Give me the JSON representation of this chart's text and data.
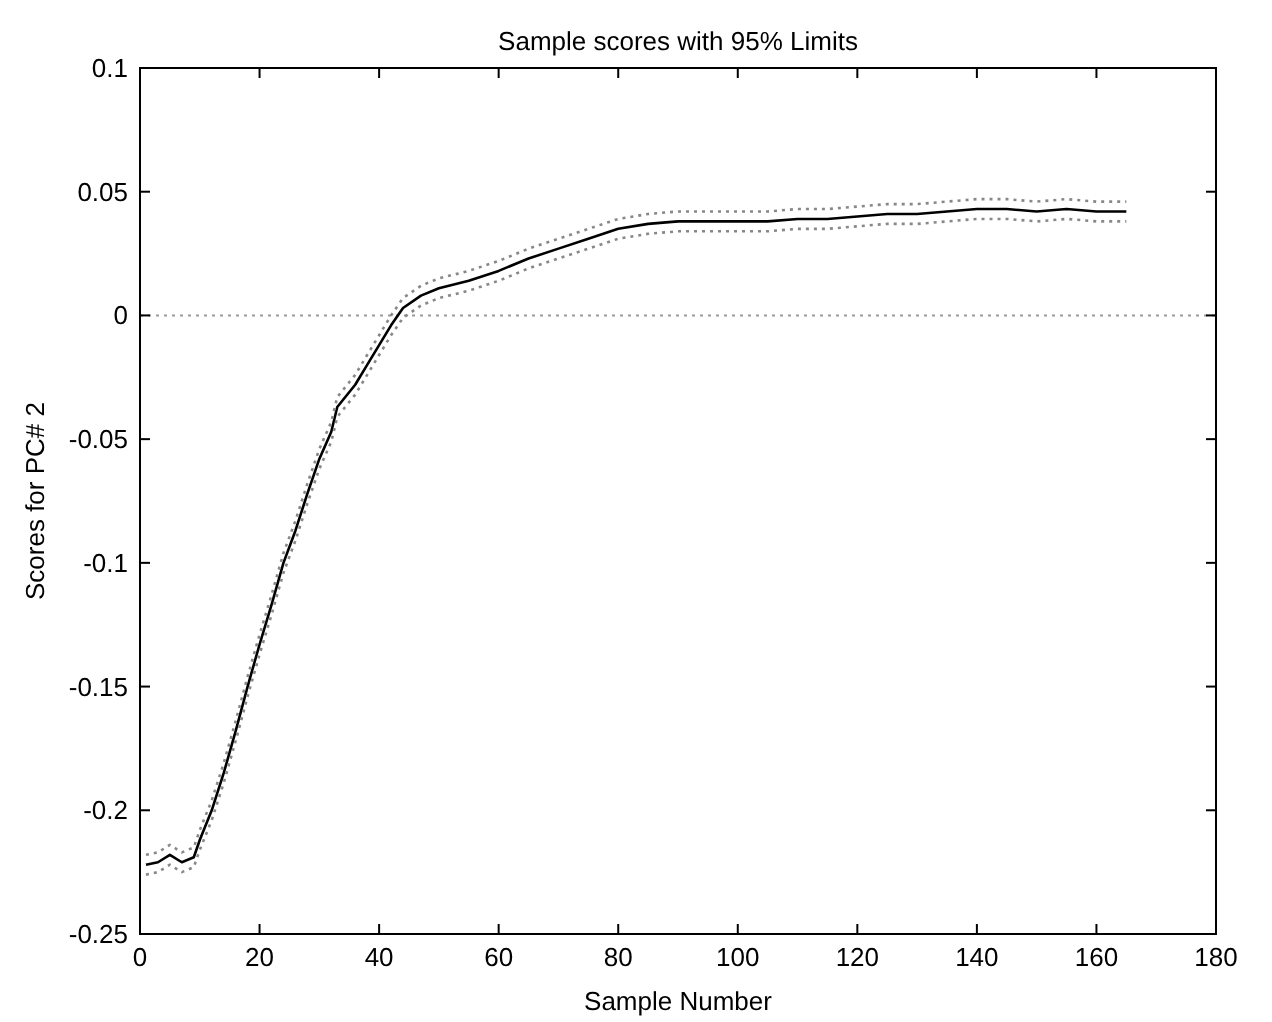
{
  "chart_data": {
    "type": "line",
    "title": "Sample scores with 95% Limits",
    "xlabel": "Sample Number",
    "ylabel": "Scores for PC# 2",
    "x": [
      1,
      3,
      5,
      7,
      9,
      10,
      12,
      14,
      16,
      18,
      20,
      22,
      24,
      26,
      28,
      30,
      32,
      33,
      36,
      38,
      40,
      42,
      44,
      47,
      50,
      55,
      60,
      65,
      70,
      75,
      80,
      85,
      90,
      95,
      100,
      105,
      110,
      115,
      120,
      125,
      130,
      135,
      140,
      145,
      150,
      155,
      160,
      165
    ],
    "series": [
      {
        "color": "#000000",
        "line_style": "solid",
        "values": [
          -0.222,
          -0.221,
          -0.218,
          -0.221,
          -0.219,
          -0.212,
          -0.2,
          -0.185,
          -0.168,
          -0.15,
          -0.133,
          -0.117,
          -0.1,
          -0.087,
          -0.072,
          -0.058,
          -0.047,
          -0.037,
          -0.028,
          -0.02,
          -0.012,
          -0.004,
          0.003,
          0.008,
          0.011,
          0.014,
          0.018,
          0.023,
          0.027,
          0.031,
          0.035,
          0.037,
          0.038,
          0.038,
          0.038,
          0.038,
          0.039,
          0.039,
          0.04,
          0.041,
          0.041,
          0.042,
          0.043,
          0.043,
          0.042,
          0.043,
          0.042,
          0.042
        ]
      },
      {
        "color": "#888888",
        "line_style": "dotted",
        "values": [
          -0.226,
          -0.225,
          -0.222,
          -0.225,
          -0.223,
          -0.216,
          -0.204,
          -0.189,
          -0.172,
          -0.154,
          -0.137,
          -0.121,
          -0.104,
          -0.091,
          -0.076,
          -0.062,
          -0.051,
          -0.041,
          -0.032,
          -0.024,
          -0.016,
          -0.008,
          -0.001,
          0.004,
          0.007,
          0.01,
          0.014,
          0.019,
          0.023,
          0.027,
          0.031,
          0.033,
          0.034,
          0.034,
          0.034,
          0.034,
          0.035,
          0.035,
          0.036,
          0.037,
          0.037,
          0.038,
          0.039,
          0.039,
          0.038,
          0.039,
          0.038,
          0.038
        ]
      },
      {
        "color": "#888888",
        "line_style": "dotted",
        "values": [
          -0.218,
          -0.217,
          -0.214,
          -0.217,
          -0.215,
          -0.208,
          -0.196,
          -0.181,
          -0.164,
          -0.146,
          -0.129,
          -0.113,
          -0.096,
          -0.083,
          -0.068,
          -0.054,
          -0.043,
          -0.033,
          -0.024,
          -0.016,
          -0.008,
          0.0,
          0.007,
          0.012,
          0.015,
          0.018,
          0.022,
          0.027,
          0.031,
          0.035,
          0.039,
          0.041,
          0.042,
          0.042,
          0.042,
          0.042,
          0.043,
          0.043,
          0.044,
          0.045,
          0.045,
          0.046,
          0.047,
          0.047,
          0.046,
          0.047,
          0.046,
          0.046
        ]
      }
    ],
    "ref_lines": [
      {
        "axis": "y",
        "value": 0,
        "color": "#999999",
        "line_style": "dotted"
      }
    ],
    "xlim": [
      0,
      180
    ],
    "xticks": [
      0,
      20,
      40,
      60,
      80,
      100,
      120,
      140,
      160,
      180
    ],
    "ylim": [
      -0.25,
      0.1
    ],
    "yticks": [
      -0.25,
      -0.2,
      -0.15,
      -0.1,
      -0.05,
      0,
      0.05,
      0.1
    ],
    "grid": false
  }
}
